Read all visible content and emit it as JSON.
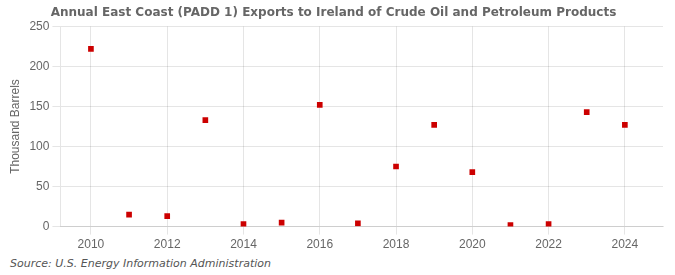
{
  "chart_data": {
    "type": "scatter",
    "title": "Annual East Coast (PADD 1) Exports to Ireland of Crude Oil and Petroleum Products",
    "y_label": "Thousand Barrels",
    "annotation": "Source: U.S. Energy Information Administration",
    "x": [
      2010,
      2011,
      2012,
      2013,
      2014,
      2015,
      2016,
      2017,
      2018,
      2019,
      2020,
      2021,
      2022,
      2023,
      2024
    ],
    "values": [
      222,
      15,
      13,
      133,
      3,
      5,
      152,
      4,
      75,
      127,
      68,
      2,
      3,
      143,
      127
    ],
    "xlim": [
      2009.2,
      2025.0
    ],
    "xticks": [
      2010,
      2012,
      2014,
      2016,
      2018,
      2020,
      2022,
      2024
    ],
    "ylim": [
      0,
      250
    ],
    "yticks": [
      0,
      50,
      100,
      150,
      200,
      250
    ],
    "color": "#cc0000",
    "marker": "square",
    "grid": true
  }
}
